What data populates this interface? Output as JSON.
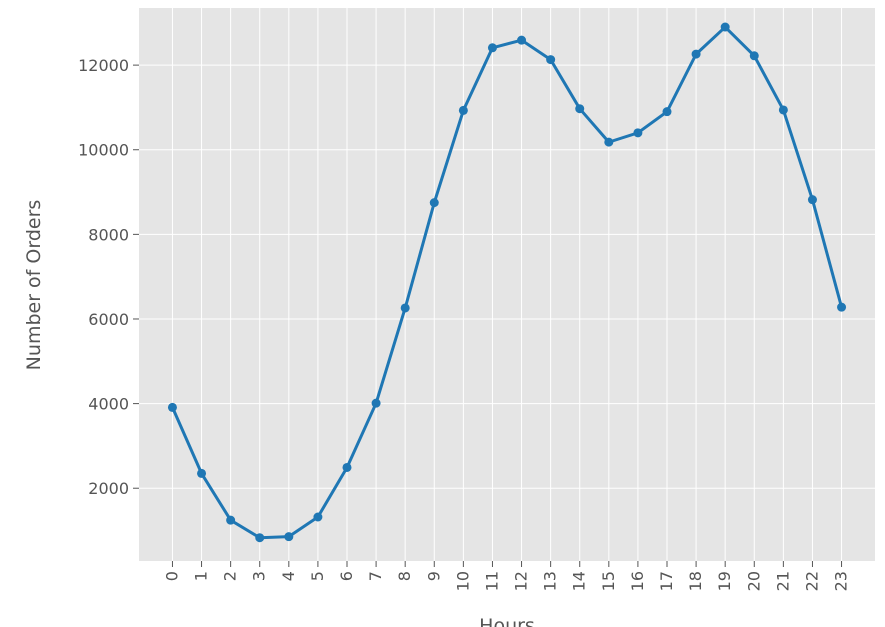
{
  "chart_data": {
    "type": "line",
    "title": "",
    "xlabel": "Hours",
    "ylabel": "Number of Orders",
    "x": [
      0,
      1,
      2,
      3,
      4,
      5,
      6,
      7,
      8,
      9,
      10,
      11,
      12,
      13,
      14,
      15,
      16,
      17,
      18,
      19,
      20,
      21,
      22,
      23
    ],
    "x_tick_labels": [
      "0",
      "1",
      "2",
      "3",
      "4",
      "5",
      "6",
      "7",
      "8",
      "9",
      "10",
      "11",
      "12",
      "13",
      "14",
      "15",
      "16",
      "17",
      "18",
      "19",
      "20",
      "21",
      "22",
      "23"
    ],
    "y_ticks": [
      2000,
      4000,
      6000,
      8000,
      10000,
      12000
    ],
    "y_tick_labels": [
      "2000",
      "4000",
      "6000",
      "8000",
      "10000",
      "12000"
    ],
    "xlim": [
      -1.15,
      24.15
    ],
    "ylim": [
      280,
      13350
    ],
    "grid": true,
    "series": [
      {
        "name": "",
        "values": [
          3910,
          2350,
          1245,
          830,
          855,
          1320,
          2490,
          4010,
          6260,
          8750,
          10930,
          12410,
          12590,
          12130,
          10970,
          10180,
          10400,
          10900,
          12260,
          12900,
          12220,
          10940,
          8820,
          6280
        ]
      }
    ],
    "colors": {
      "line": "#1f77b4",
      "plot_background": "#e5e5e5",
      "grid": "#ffffff",
      "text": "#555555"
    }
  }
}
